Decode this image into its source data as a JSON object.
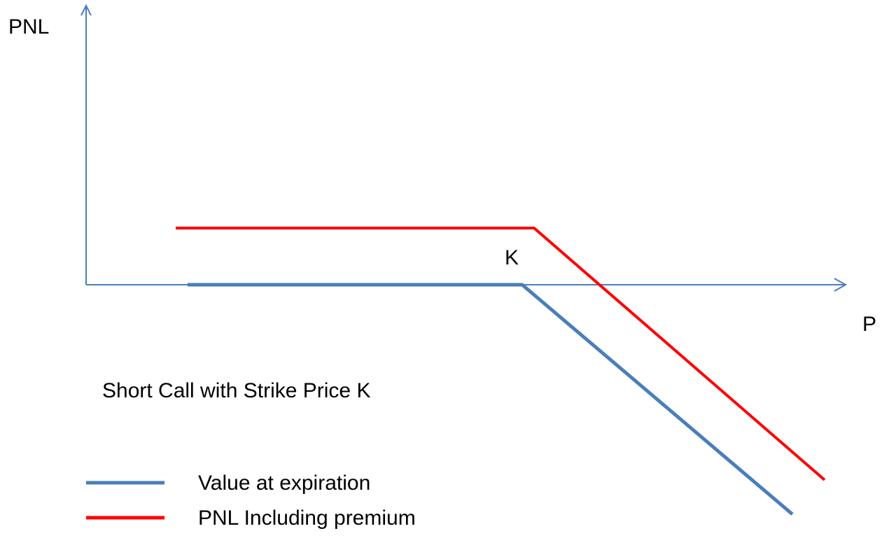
{
  "axes": {
    "y_label": "PNL",
    "x_label": "P",
    "strike_label": "K"
  },
  "caption": "Short Call with Strike Price K",
  "legend": [
    {
      "label": "Value at expiration"
    },
    {
      "label": "PNL Including premium"
    }
  ]
}
